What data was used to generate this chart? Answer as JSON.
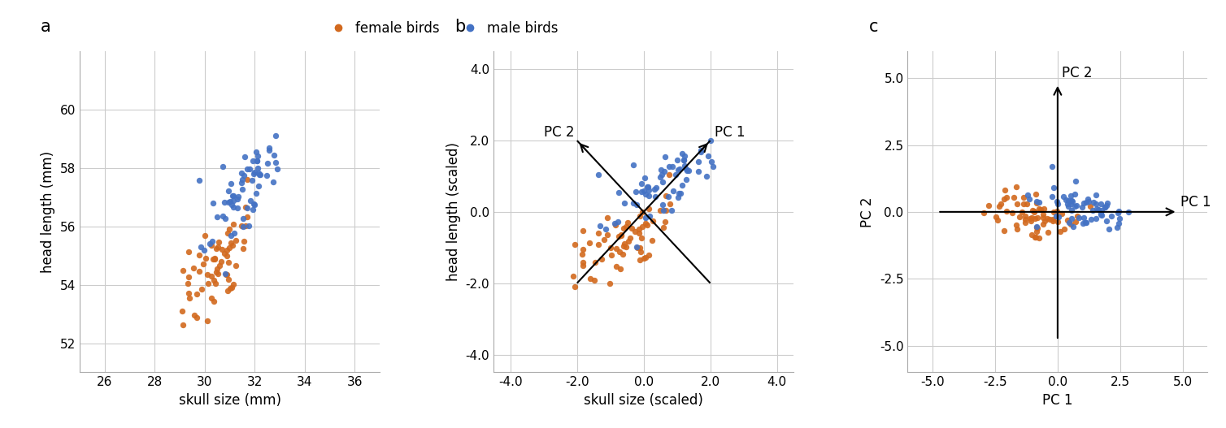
{
  "female_color": "#D2691E",
  "male_color": "#4472C4",
  "marker_size": 28,
  "marker_alpha": 0.9,
  "panel_a": {
    "xlabel": "skull size (mm)",
    "ylabel": "head length (mm)",
    "xlim": [
      25.0,
      37.0
    ],
    "ylim": [
      51.0,
      62.0
    ],
    "xticks": [
      26,
      28,
      30,
      32,
      34,
      36
    ],
    "yticks": [
      52,
      54,
      56,
      58,
      60
    ]
  },
  "panel_b": {
    "xlabel": "skull size (scaled)",
    "ylabel": "head length (scaled)",
    "xlim": [
      -4.5,
      4.5
    ],
    "ylim": [
      -4.5,
      4.5
    ],
    "xticks": [
      -4.0,
      -2.0,
      0.0,
      2.0,
      4.0
    ],
    "yticks": [
      -4.0,
      -2.0,
      0.0,
      2.0,
      4.0
    ]
  },
  "panel_c": {
    "xlabel": "PC 1",
    "ylabel": "PC 2",
    "xlim": [
      -6.0,
      6.0
    ],
    "ylim": [
      -6.0,
      6.0
    ],
    "xticks": [
      -5.0,
      -2.5,
      0.0,
      2.5,
      5.0
    ],
    "yticks": [
      -5.0,
      -2.5,
      0.0,
      2.5,
      5.0
    ]
  },
  "label_fontsize": 12,
  "tick_fontsize": 11,
  "panel_label_fontsize": 15,
  "legend_fontsize": 12,
  "grid_color": "#cccccc",
  "background_color": "white"
}
